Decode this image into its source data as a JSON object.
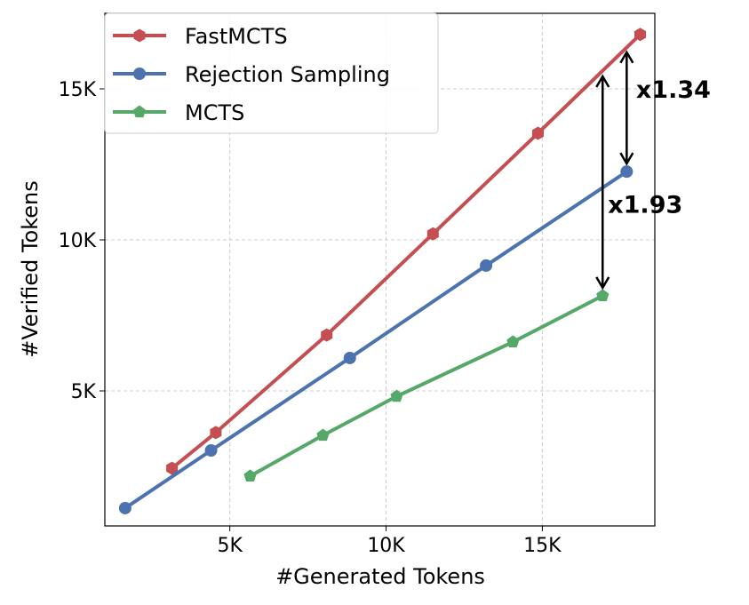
{
  "chart_data": {
    "type": "line",
    "title": "",
    "xlabel": "#Generated Tokens",
    "ylabel": "#Verified Tokens",
    "xlim": [
      1000,
      18600
    ],
    "ylim": [
      530,
      17500
    ],
    "xticks": [
      {
        "value": 5000,
        "label": "5K"
      },
      {
        "value": 10000,
        "label": "10K"
      },
      {
        "value": 15000,
        "label": "15K"
      }
    ],
    "yticks": [
      {
        "value": 5000,
        "label": "5K"
      },
      {
        "value": 10000,
        "label": "10K"
      },
      {
        "value": 15000,
        "label": "15K"
      }
    ],
    "grid": true,
    "legend_position": "top-left",
    "series": [
      {
        "name": "FastMCTS",
        "color": "#c44e52",
        "marker": "hexagon",
        "x": [
          3150,
          4550,
          8100,
          11500,
          14860,
          18130
        ],
        "y": [
          2440,
          3620,
          6850,
          10200,
          13530,
          16800
        ]
      },
      {
        "name": "Rejection Sampling",
        "color": "#4c72b0",
        "marker": "circle",
        "x": [
          1650,
          4400,
          8840,
          13200,
          17700
        ],
        "y": [
          1120,
          3030,
          6090,
          9150,
          12260
        ]
      },
      {
        "name": "MCTS",
        "color": "#55a868",
        "marker": "pentagon",
        "x": [
          5650,
          7980,
          10340,
          14060,
          16930
        ],
        "y": [
          2180,
          3530,
          4820,
          6620,
          8150
        ]
      }
    ],
    "annotations": [
      {
        "text": "x1.34",
        "arrow_x": 17700,
        "arrow_y_from": 12260,
        "arrow_y_to": 16300,
        "text_x": 18000,
        "text_y": 14700
      },
      {
        "text": "x1.93",
        "arrow_x": 16930,
        "arrow_y_from": 8150,
        "arrow_y_to": 15500,
        "text_x": 17100,
        "text_y": 10900
      }
    ]
  }
}
